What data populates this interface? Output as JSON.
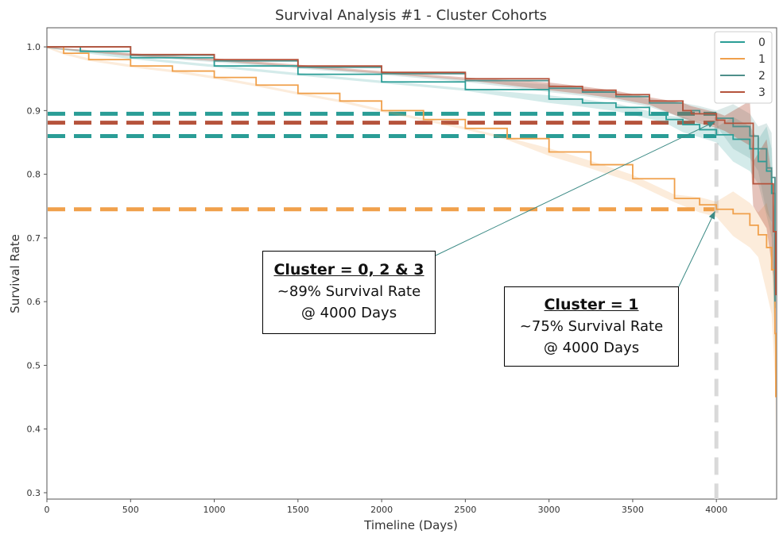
{
  "chart_data": {
    "type": "line",
    "title": "Survival Analysis #1 - Cluster Cohorts",
    "xlabel": "Timeline (Days)",
    "ylabel": "Survival Rate",
    "xlim": [
      0,
      4360
    ],
    "ylim": [
      0.29,
      1.03
    ],
    "xticks": [
      0,
      500,
      1000,
      1500,
      2000,
      2500,
      3000,
      3500,
      4000
    ],
    "yticks": [
      0.3,
      0.4,
      0.5,
      0.6,
      0.7,
      0.8,
      0.9,
      1.0
    ],
    "ytick_labels": [
      "0.3",
      "0.4",
      "0.5",
      "0.6",
      "0.7",
      "0.8",
      "0.9",
      "1.0"
    ],
    "legend_position": "top-right",
    "series": [
      {
        "name": "0",
        "color": "#2a9d96",
        "x": [
          0,
          200,
          500,
          1000,
          1500,
          2000,
          2500,
          3000,
          3200,
          3400,
          3600,
          3700,
          3800,
          3900,
          4000,
          4100,
          4200,
          4250,
          4300,
          4330,
          4350
        ],
        "y": [
          1.0,
          0.993,
          0.983,
          0.97,
          0.957,
          0.945,
          0.933,
          0.918,
          0.912,
          0.905,
          0.893,
          0.886,
          0.878,
          0.87,
          0.862,
          0.855,
          0.84,
          0.82,
          0.805,
          0.77,
          0.59
        ]
      },
      {
        "name": "1",
        "color": "#f0a04b",
        "x": [
          0,
          100,
          250,
          500,
          750,
          1000,
          1250,
          1500,
          1750,
          2000,
          2250,
          2500,
          2750,
          3000,
          3250,
          3500,
          3750,
          3900,
          4000,
          4100,
          4200,
          4250,
          4300,
          4330,
          4350,
          4355
        ],
        "y": [
          1.0,
          0.99,
          0.98,
          0.97,
          0.962,
          0.952,
          0.94,
          0.927,
          0.915,
          0.9,
          0.886,
          0.872,
          0.856,
          0.835,
          0.815,
          0.793,
          0.762,
          0.752,
          0.745,
          0.738,
          0.72,
          0.705,
          0.685,
          0.65,
          0.55,
          0.45
        ]
      },
      {
        "name": "2",
        "color": "#4e8f8a",
        "x": [
          0,
          500,
          1000,
          1500,
          2000,
          2500,
          3000,
          3200,
          3400,
          3600,
          3800,
          3900,
          4000,
          4100,
          4200,
          4250,
          4300,
          4330,
          4350
        ],
        "y": [
          1.0,
          0.987,
          0.978,
          0.968,
          0.958,
          0.947,
          0.935,
          0.929,
          0.922,
          0.912,
          0.9,
          0.895,
          0.888,
          0.875,
          0.86,
          0.84,
          0.81,
          0.795,
          0.6
        ]
      },
      {
        "name": "3",
        "color": "#b5533c",
        "x": [
          0,
          500,
          1000,
          1500,
          2000,
          2500,
          3000,
          3200,
          3400,
          3600,
          3800,
          3850,
          4000,
          4050,
          4200,
          4220,
          4300,
          4340,
          4355
        ],
        "y": [
          1.0,
          0.988,
          0.98,
          0.97,
          0.96,
          0.95,
          0.938,
          0.932,
          0.925,
          0.915,
          0.9,
          0.895,
          0.885,
          0.88,
          0.88,
          0.785,
          0.785,
          0.71,
          0.61
        ]
      }
    ],
    "reference_lines": [
      {
        "y": 0.895,
        "color": "#2a9d96"
      },
      {
        "y": 0.881,
        "color": "#b5533c"
      },
      {
        "y": 0.86,
        "color": "#2a9d96"
      },
      {
        "y": 0.745,
        "color": "#f0a04b"
      }
    ],
    "vertical_reference": {
      "x": 4000,
      "color": "#d9d9d9"
    },
    "annotations": [
      {
        "title": "Cluster = 0, 2 & 3",
        "line1": "~89% Survival Rate",
        "line2": "@ 4000 Days",
        "arrow_target": [
          4000,
          0.89
        ]
      },
      {
        "title": "Cluster = 1",
        "line1": "~75% Survival Rate",
        "line2": "@ 4000 Days",
        "arrow_target": [
          4000,
          0.745
        ]
      }
    ]
  }
}
